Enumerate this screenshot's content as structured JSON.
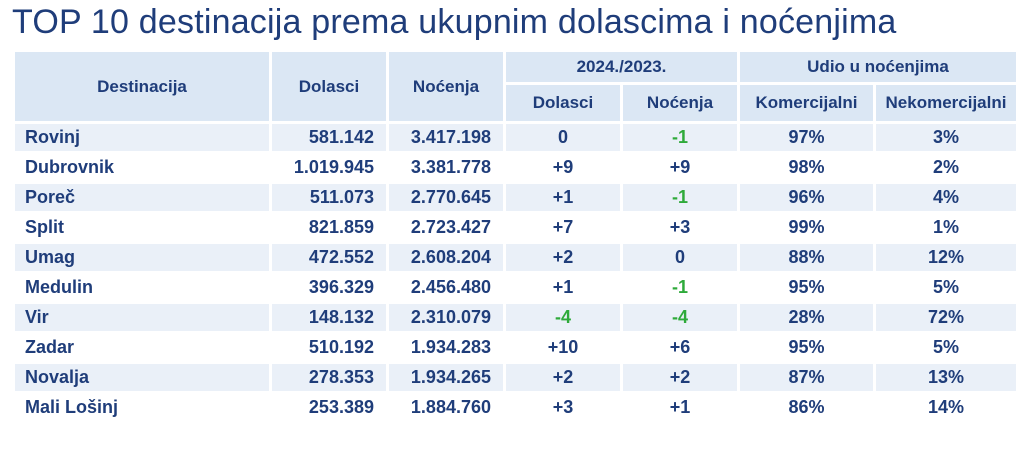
{
  "title": "TOP 10 destinacija prema ukupnim dolascima i noćenjima",
  "headers": {
    "destination": "Destinacija",
    "arrivals": "Dolasci",
    "nights": "Noćenja",
    "change_group": "2024./2023.",
    "change_arrivals": "Dolasci",
    "change_nights": "Noćenja",
    "share_group": "Udio u noćenjima",
    "commercial": "Komercijalni",
    "noncommercial": "Nekomercijalni"
  },
  "rows": [
    {
      "dest": "Rovinj",
      "arrivals": "581.142",
      "nights": "3.417.198",
      "d_arr": "0",
      "d_nights": "-1",
      "comm": "97%",
      "noncomm": "3%"
    },
    {
      "dest": "Dubrovnik",
      "arrivals": "1.019.945",
      "nights": "3.381.778",
      "d_arr": "+9",
      "d_nights": "+9",
      "comm": "98%",
      "noncomm": "2%"
    },
    {
      "dest": "Poreč",
      "arrivals": "511.073",
      "nights": "2.770.645",
      "d_arr": "+1",
      "d_nights": "-1",
      "comm": "96%",
      "noncomm": "4%"
    },
    {
      "dest": "Split",
      "arrivals": "821.859",
      "nights": "2.723.427",
      "d_arr": "+7",
      "d_nights": "+3",
      "comm": "99%",
      "noncomm": "1%"
    },
    {
      "dest": "Umag",
      "arrivals": "472.552",
      "nights": "2.608.204",
      "d_arr": "+2",
      "d_nights": "0",
      "comm": "88%",
      "noncomm": "12%"
    },
    {
      "dest": "Medulin",
      "arrivals": "396.329",
      "nights": "2.456.480",
      "d_arr": "+1",
      "d_nights": "-1",
      "comm": "95%",
      "noncomm": "5%"
    },
    {
      "dest": "Vir",
      "arrivals": "148.132",
      "nights": "2.310.079",
      "d_arr": "-4",
      "d_nights": "-4",
      "comm": "28%",
      "noncomm": "72%"
    },
    {
      "dest": "Zadar",
      "arrivals": "510.192",
      "nights": "1.934.283",
      "d_arr": "+10",
      "d_nights": "+6",
      "comm": "95%",
      "noncomm": "5%"
    },
    {
      "dest": "Novalja",
      "arrivals": "278.353",
      "nights": "1.934.265",
      "d_arr": "+2",
      "d_nights": "+2",
      "comm": "87%",
      "noncomm": "13%"
    },
    {
      "dest": "Mali Lošinj",
      "arrivals": "253.389",
      "nights": "1.884.760",
      "d_arr": "+3",
      "d_nights": "+1",
      "comm": "86%",
      "noncomm": "14%"
    }
  ],
  "colors": {
    "text": "#1f3d7a",
    "negative": "#2eaa3a",
    "header_bg": "#dbe7f4",
    "band_bg": "#eaf0f8"
  }
}
